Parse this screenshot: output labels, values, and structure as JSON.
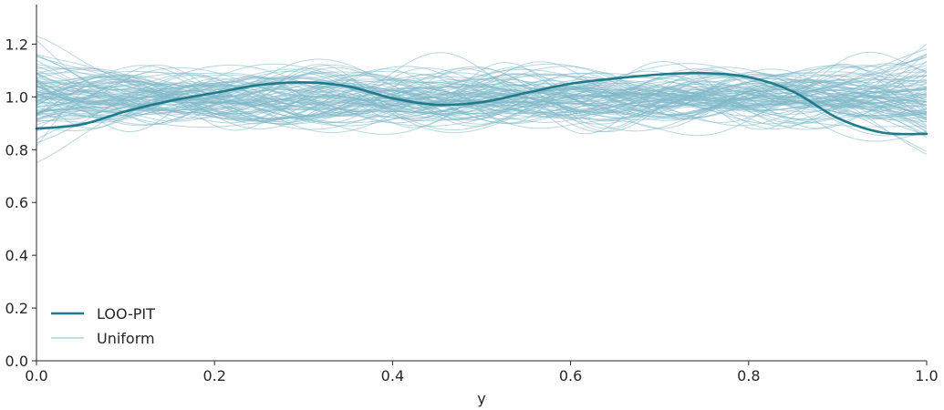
{
  "chart_data": {
    "type": "line",
    "title": "",
    "xlabel": "y",
    "ylabel": "",
    "xlim": [
      0.0,
      1.0
    ],
    "ylim": [
      0.0,
      1.35
    ],
    "x_ticks": [
      "0.0",
      "0.2",
      "0.4",
      "0.6",
      "0.8",
      "1.0"
    ],
    "y_ticks": [
      "0.0",
      "0.2",
      "0.4",
      "0.6",
      "0.8",
      "1.0",
      "1.2"
    ],
    "grid": false,
    "legend_position": "lower-left",
    "legend": [
      {
        "label": "LOO-PIT",
        "color": "#1f7a8c",
        "style": "thick"
      },
      {
        "label": "Uniform",
        "color": "#7fb8c9",
        "style": "thin"
      }
    ],
    "series": [
      {
        "name": "LOO-PIT",
        "color": "#1f7a8c",
        "x": [
          0.0,
          0.05,
          0.1,
          0.15,
          0.2,
          0.25,
          0.3,
          0.35,
          0.4,
          0.45,
          0.5,
          0.55,
          0.6,
          0.65,
          0.7,
          0.75,
          0.8,
          0.85,
          0.9,
          0.95,
          1.0
        ],
        "values": [
          0.88,
          0.895,
          0.945,
          0.985,
          1.015,
          1.045,
          1.055,
          1.04,
          0.995,
          0.97,
          0.98,
          1.015,
          1.05,
          1.07,
          1.085,
          1.09,
          1.075,
          1.02,
          0.92,
          0.865,
          0.86
        ]
      }
    ],
    "reference_band": {
      "name": "Uniform",
      "color": "#7fb8c9",
      "count": 100,
      "center": 1.0,
      "typical_range": [
        0.82,
        1.33
      ]
    }
  }
}
